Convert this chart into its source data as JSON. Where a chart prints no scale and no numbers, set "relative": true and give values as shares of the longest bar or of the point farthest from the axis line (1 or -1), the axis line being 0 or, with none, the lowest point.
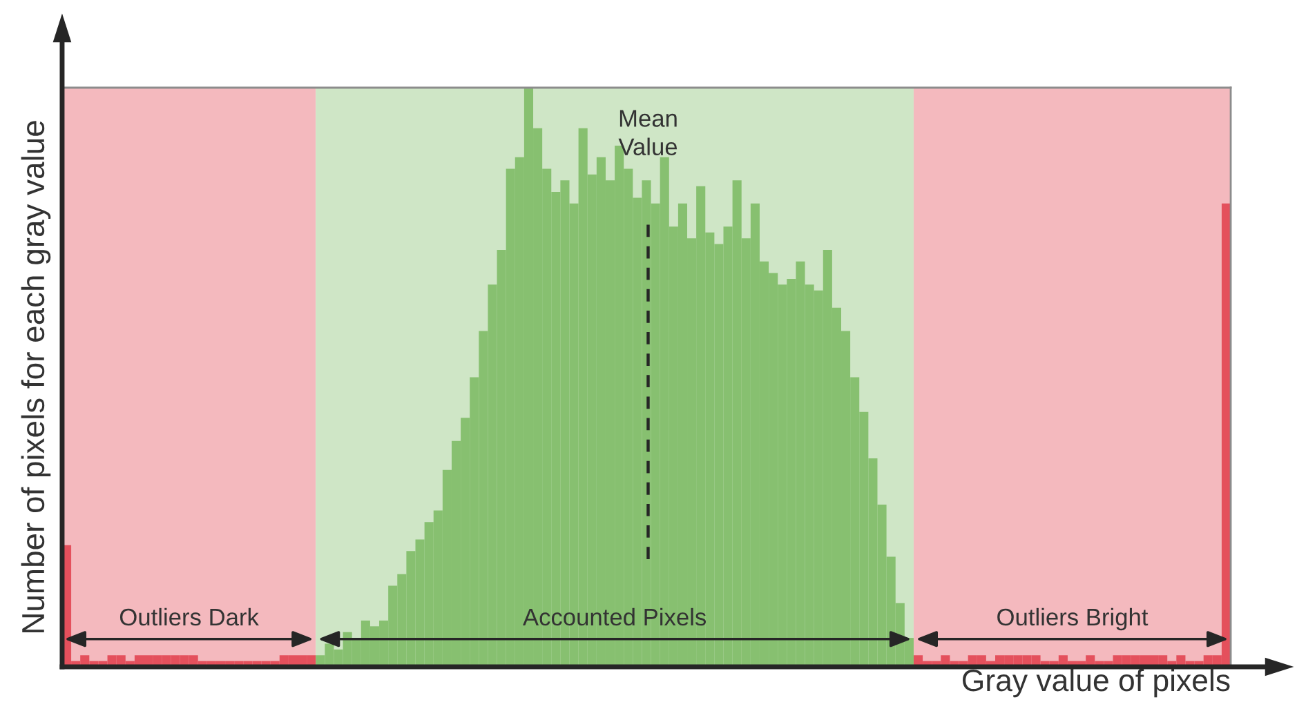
{
  "chart_data": {
    "type": "bar",
    "relative": true,
    "xlabel": "Gray value of pixels",
    "ylabel": "Number of pixels for each gray value",
    "annotations": [
      "Outliers Dark",
      "Accounted Pixels",
      "Outliers Bright",
      "Mean\nValue"
    ],
    "categories": [
      null,
      null,
      null,
      null,
      null,
      null,
      null,
      null,
      null,
      null,
      null,
      null,
      null,
      null,
      null,
      null,
      null,
      null,
      null,
      null,
      null,
      null,
      null,
      null,
      null,
      null,
      null,
      null,
      null,
      null,
      null,
      null,
      null,
      null,
      null,
      null,
      null,
      null,
      null,
      null,
      null,
      null,
      null,
      null,
      null,
      null,
      null,
      null,
      null,
      null,
      null,
      null,
      null,
      null,
      null,
      null,
      null,
      null,
      null,
      null,
      null,
      null,
      null,
      null,
      null,
      null,
      null,
      null,
      null,
      null,
      null,
      null,
      null,
      null,
      null,
      null,
      null,
      null,
      null,
      null,
      null,
      null,
      null,
      null,
      null,
      null,
      null,
      null,
      null,
      null,
      null,
      null,
      null,
      null,
      null,
      null,
      null,
      null,
      null,
      null,
      null,
      null,
      null,
      null,
      null,
      null,
      null,
      null,
      null,
      null,
      null,
      null,
      null,
      null,
      null,
      null,
      null,
      null,
      null,
      null,
      null,
      null,
      null,
      null,
      null,
      null,
      null,
      null,
      null
    ],
    "values": [
      0.21,
      0.01,
      0.02,
      0.01,
      0.01,
      0.02,
      0.02,
      0.01,
      0.02,
      0.02,
      0.02,
      0.02,
      0.02,
      0.02,
      0.02,
      0.01,
      0.01,
      0.01,
      0.01,
      0.01,
      0.01,
      0.01,
      0.01,
      0.01,
      0.02,
      0.02,
      0.02,
      0.02,
      0.02,
      0.04,
      0.03,
      0.06,
      0.05,
      0.08,
      0.07,
      0.08,
      0.14,
      0.16,
      0.2,
      0.22,
      0.25,
      0.27,
      0.34,
      0.39,
      0.43,
      0.5,
      0.58,
      0.66,
      0.72,
      0.86,
      0.88,
      1,
      0.93,
      0.86,
      0.82,
      0.84,
      0.8,
      0.93,
      0.85,
      0.88,
      0.84,
      0.9,
      0.86,
      0.81,
      0.84,
      0.8,
      0.88,
      0.76,
      0.8,
      0.74,
      0.83,
      0.75,
      0.73,
      0.76,
      0.84,
      0.74,
      0.8,
      0.7,
      0.68,
      0.66,
      0.67,
      0.7,
      0.66,
      0.65,
      0.72,
      0.62,
      0.58,
      0.5,
      0.44,
      0.36,
      0.28,
      0.19,
      0.11,
      0.05,
      0.02,
      0.01,
      0.01,
      0.02,
      0.01,
      0.01,
      0.02,
      0.02,
      0.01,
      0.02,
      0.02,
      0.02,
      0.02,
      0.02,
      0.01,
      0.01,
      0.02,
      0.01,
      0.01,
      0.02,
      0.01,
      0.01,
      0.02,
      0.02,
      0.02,
      0.02,
      0.02,
      0.02,
      0.01,
      0.02,
      0.01,
      0.01,
      0.02,
      0.02,
      0.8
    ],
    "colors": [
      "#e4505c",
      "#e4505c",
      "#e4505c",
      "#e4505c",
      "#e4505c",
      "#e4505c",
      "#e4505c",
      "#e4505c",
      "#e4505c",
      "#e4505c",
      "#e4505c",
      "#e4505c",
      "#e4505c",
      "#e4505c",
      "#e4505c",
      "#e4505c",
      "#e4505c",
      "#e4505c",
      "#e4505c",
      "#e4505c",
      "#e4505c",
      "#e4505c",
      "#e4505c",
      "#e4505c",
      "#e4505c",
      "#e4505c",
      "#e4505c",
      "#e4505c",
      "#87c070",
      "#87c070",
      "#87c070",
      "#87c070",
      "#87c070",
      "#87c070",
      "#87c070",
      "#87c070",
      "#87c070",
      "#87c070",
      "#87c070",
      "#87c070",
      "#87c070",
      "#87c070",
      "#87c070",
      "#87c070",
      "#87c070",
      "#87c070",
      "#87c070",
      "#87c070",
      "#87c070",
      "#87c070",
      "#87c070",
      "#87c070",
      "#87c070",
      "#87c070",
      "#87c070",
      "#87c070",
      "#87c070",
      "#87c070",
      "#87c070",
      "#87c070",
      "#87c070",
      "#87c070",
      "#87c070",
      "#87c070",
      "#87c070",
      "#87c070",
      "#87c070",
      "#87c070",
      "#87c070",
      "#87c070",
      "#87c070",
      "#87c070",
      "#87c070",
      "#87c070",
      "#87c070",
      "#87c070",
      "#87c070",
      "#87c070",
      "#87c070",
      "#87c070",
      "#87c070",
      "#87c070",
      "#87c070",
      "#87c070",
      "#87c070",
      "#87c070",
      "#87c070",
      "#87c070",
      "#87c070",
      "#87c070",
      "#87c070",
      "#87c070",
      "#87c070",
      "#87c070",
      "#e4505c",
      "#e4505c",
      "#e4505c",
      "#e4505c",
      "#e4505c",
      "#e4505c",
      "#e4505c",
      "#e4505c",
      "#e4505c",
      "#e4505c",
      "#e4505c",
      "#e4505c",
      "#e4505c",
      "#e4505c",
      "#e4505c",
      "#e4505c",
      "#e4505c",
      "#e4505c",
      "#e4505c",
      "#e4505c",
      "#e4505c",
      "#e4505c",
      "#e4505c",
      "#e4505c",
      "#e4505c",
      "#e4505c",
      "#e4505c",
      "#e4505c",
      "#e4505c",
      "#e4505c",
      "#e4505c",
      "#e4505c",
      "#e4505c",
      "#e4505c",
      "#e4505c"
    ]
  }
}
